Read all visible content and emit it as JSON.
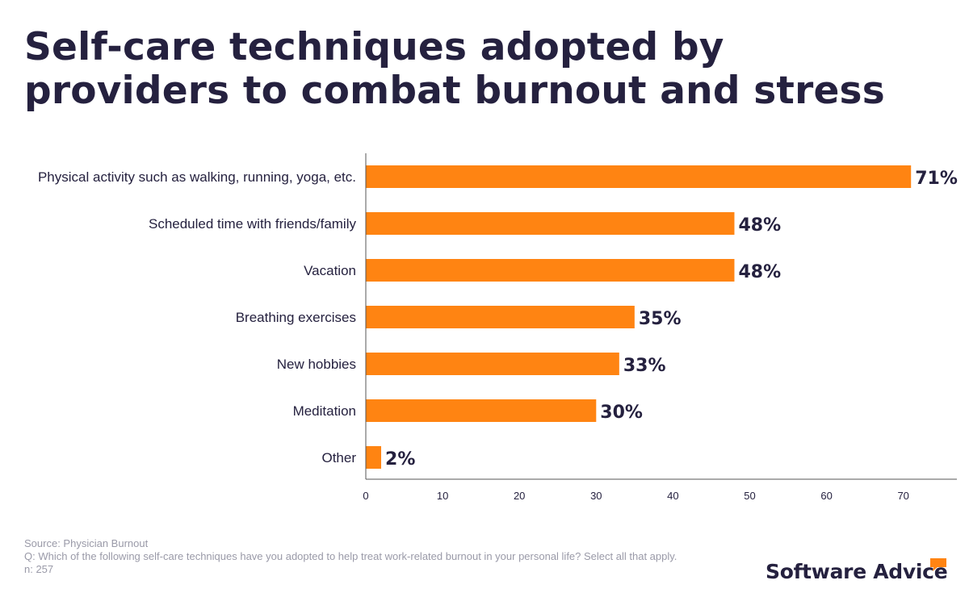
{
  "title": "Self-care techniques adopted by providers to combat burnout and stress",
  "chart_data": {
    "type": "bar",
    "orientation": "horizontal",
    "categories": [
      "Physical activity such as walking, running, yoga, etc.",
      "Scheduled time with friends/family",
      "Vacation",
      "Breathing exercises",
      "New hobbies",
      "Meditation",
      "Other"
    ],
    "values": [
      71,
      48,
      48,
      35,
      33,
      30,
      2
    ],
    "value_labels": [
      "71%",
      "48%",
      "48%",
      "35%",
      "33%",
      "30%",
      "2%"
    ],
    "x_ticks": [
      0,
      10,
      20,
      30,
      40,
      50,
      60,
      70
    ],
    "xlim": [
      0,
      77
    ],
    "xlabel": "",
    "ylabel": "",
    "bar_color": "#ff8412",
    "grid": false
  },
  "footer": {
    "source": "Source: Physician Burnout",
    "question": "Q: Which of the following self-care techniques have you adopted to help treat work-related burnout in your personal life? Select all that apply.",
    "n": "n: 257"
  },
  "brand": {
    "name": "Software Advice",
    "accent_color": "#ff8412"
  }
}
